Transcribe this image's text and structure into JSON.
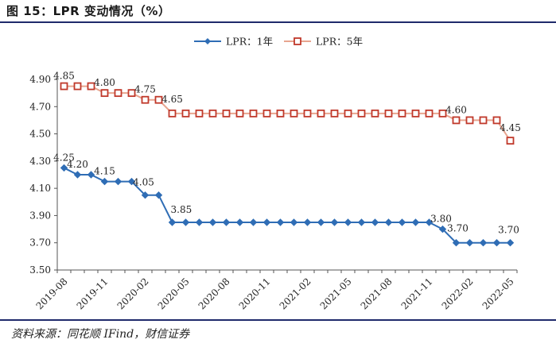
{
  "title": "图 15：LPR 变动情况（%）",
  "source": "资料来源：同花顺 IFind，财信证券",
  "chart_data": {
    "type": "line",
    "title": "",
    "xlabel": "",
    "ylabel": "",
    "ylim": [
      3.5,
      4.9
    ],
    "yticks": [
      "3.50",
      "3.70",
      "3.90",
      "4.10",
      "4.30",
      "4.50",
      "4.70",
      "4.90"
    ],
    "x": [
      "2019-08",
      "2019-09",
      "2019-10",
      "2019-11",
      "2019-12",
      "2020-01",
      "2020-02",
      "2020-03",
      "2020-04",
      "2020-05",
      "2020-06",
      "2020-07",
      "2020-08",
      "2020-09",
      "2020-10",
      "2020-11",
      "2020-12",
      "2021-01",
      "2021-02",
      "2021-03",
      "2021-04",
      "2021-05",
      "2021-06",
      "2021-07",
      "2021-08",
      "2021-09",
      "2021-10",
      "2021-11",
      "2021-12",
      "2022-01",
      "2022-02",
      "2022-03",
      "2022-04",
      "2022-05"
    ],
    "xtick_labels": [
      "2019-08",
      "2019-11",
      "2020-02",
      "2020-05",
      "2020-08",
      "2020-11",
      "2021-02",
      "2021-05",
      "2021-08",
      "2021-11",
      "2022-02",
      "2022-05"
    ],
    "legend_position": "top",
    "series": [
      {
        "name": "LPR：1年",
        "color": "#2f6db5",
        "marker": "diamond",
        "values": [
          4.25,
          4.2,
          4.2,
          4.15,
          4.15,
          4.15,
          4.05,
          4.05,
          3.85,
          3.85,
          3.85,
          3.85,
          3.85,
          3.85,
          3.85,
          3.85,
          3.85,
          3.85,
          3.85,
          3.85,
          3.85,
          3.85,
          3.85,
          3.85,
          3.85,
          3.85,
          3.85,
          3.85,
          3.8,
          3.7,
          3.7,
          3.7,
          3.7,
          3.7
        ]
      },
      {
        "name": "LPR：5年",
        "color": "#c0392b",
        "line_color": "#e8a58f",
        "marker": "square",
        "values": [
          4.85,
          4.85,
          4.85,
          4.8,
          4.8,
          4.8,
          4.75,
          4.75,
          4.65,
          4.65,
          4.65,
          4.65,
          4.65,
          4.65,
          4.65,
          4.65,
          4.65,
          4.65,
          4.65,
          4.65,
          4.65,
          4.65,
          4.65,
          4.65,
          4.65,
          4.65,
          4.65,
          4.65,
          4.65,
          4.6,
          4.6,
          4.6,
          4.6,
          4.45
        ]
      }
    ],
    "annotations": [
      {
        "series": 1,
        "index": 0,
        "text": "4.85"
      },
      {
        "series": 1,
        "index": 3,
        "text": "4.80"
      },
      {
        "series": 1,
        "index": 6,
        "text": "4.75"
      },
      {
        "series": 1,
        "index": 8,
        "text": "4.65"
      },
      {
        "series": 1,
        "index": 29,
        "text": "4.60"
      },
      {
        "series": 1,
        "index": 33,
        "text": "4.45"
      },
      {
        "series": 0,
        "index": 0,
        "text": "4.25"
      },
      {
        "series": 0,
        "index": 1,
        "text": "4.20"
      },
      {
        "series": 0,
        "index": 3,
        "text": "4.15"
      },
      {
        "series": 0,
        "index": 6,
        "text": "4.05"
      },
      {
        "series": 0,
        "index": 8,
        "text": "3.85"
      },
      {
        "series": 0,
        "index": 28,
        "text": "3.80"
      },
      {
        "series": 0,
        "index": 29,
        "text": "3.70"
      },
      {
        "series": 0,
        "index": 33,
        "text": "3.70"
      }
    ]
  }
}
